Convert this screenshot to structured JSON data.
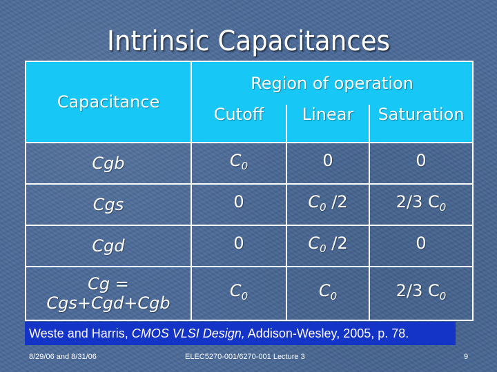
{
  "slide": {
    "title": "Intrinsic Capacitances"
  },
  "table": {
    "header": {
      "capacitance": "Capacitance",
      "region": "Region of operation",
      "cutoff": "Cutoff",
      "linear": "Linear",
      "saturation": "Saturation"
    },
    "rows": [
      {
        "name": "Cgb",
        "cutoff": {
          "base": "C",
          "sub": "0",
          "suffix": ""
        },
        "linear": {
          "base": "0",
          "sub": "",
          "suffix": ""
        },
        "saturation": {
          "base": "0",
          "sub": "",
          "suffix": ""
        }
      },
      {
        "name": "Cgs",
        "cutoff": {
          "base": "0",
          "sub": "",
          "suffix": ""
        },
        "linear": {
          "base": "C",
          "sub": "0",
          "suffix": " /2"
        },
        "saturation": {
          "base": "2/3 C",
          "sub": "0",
          "suffix": ""
        }
      },
      {
        "name": "Cgd",
        "cutoff": {
          "base": "0",
          "sub": "",
          "suffix": ""
        },
        "linear": {
          "base": "C",
          "sub": "0",
          "suffix": " /2"
        },
        "saturation": {
          "base": "0",
          "sub": "",
          "suffix": ""
        }
      },
      {
        "name_line1": "Cg =",
        "name_line2": "Cgs+Cgd+Cgb",
        "cutoff": {
          "base": "C",
          "sub": "0",
          "suffix": ""
        },
        "linear": {
          "base": "C",
          "sub": "0",
          "suffix": ""
        },
        "saturation": {
          "base": "2/3 C",
          "sub": "0",
          "suffix": ""
        }
      }
    ]
  },
  "citation": {
    "authors": "Weste and Harris, ",
    "book": "CMOS VLSI Design,",
    "rest": " Addison-Wesley, 2005, p. 78."
  },
  "footer": {
    "date": "8/29/06 and 8/31/06",
    "course": "ELEC5270-001/6270-001 Lecture 3",
    "page": "9"
  },
  "colors": {
    "background": "#4a6a98",
    "header_fill": "#17c7f6",
    "citation_fill": "#1434c8",
    "text": "#ffffff"
  }
}
